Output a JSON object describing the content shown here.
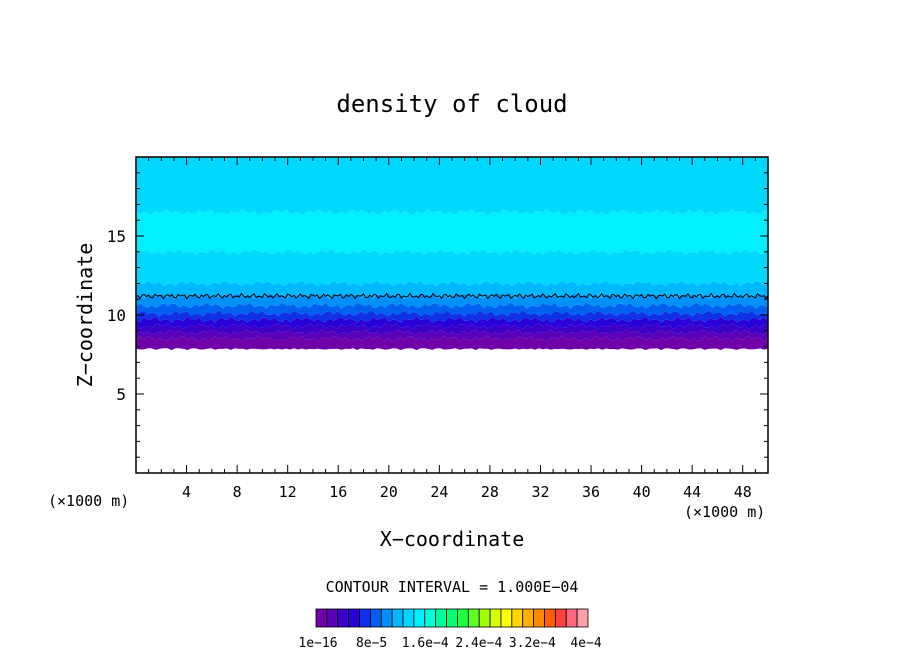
{
  "chart_data": {
    "type": "heatmap",
    "title": "density of cloud",
    "xlabel": "X−coordinate",
    "ylabel": "Z−coordinate",
    "x_unit": "(×1000 m)",
    "y_unit": "(×1000 m)",
    "xlim": [
      0,
      50
    ],
    "ylim": [
      0,
      20
    ],
    "x_ticks": [
      4,
      8,
      12,
      16,
      20,
      24,
      28,
      32,
      36,
      40,
      44,
      48
    ],
    "y_ticks": [
      5,
      10,
      15
    ],
    "grid": false,
    "contour_interval_text": "CONTOUR INTERVAL = 1.000E−04",
    "colorbar_labels": [
      "1e−16",
      "8e−5",
      "1.6e−4",
      "2.4e−4",
      "3.2e−4",
      "4e−4"
    ],
    "colorbar_colors": [
      "#7000a8",
      "#5a00b8",
      "#3c00c8",
      "#2800d8",
      "#1030e8",
      "#0060f0",
      "#0090f8",
      "#00b8ff",
      "#00d8ff",
      "#00f0ff",
      "#00ffd8",
      "#00ffa0",
      "#00ff70",
      "#20ff40",
      "#60ff20",
      "#a0ff00",
      "#d8ff00",
      "#ffff00",
      "#ffd800",
      "#ffb000",
      "#ff8800",
      "#ff6000",
      "#ff4040",
      "#ff6880",
      "#ffa0a8"
    ],
    "layers": [
      {
        "z_bottom": 7.9,
        "z_top": 8.5,
        "color": "#7000a8"
      },
      {
        "z_bottom": 8.5,
        "z_top": 8.9,
        "color": "#5a00b8"
      },
      {
        "z_bottom": 8.9,
        "z_top": 9.3,
        "color": "#3c00c8"
      },
      {
        "z_bottom": 9.3,
        "z_top": 9.7,
        "color": "#2800d8"
      },
      {
        "z_bottom": 9.7,
        "z_top": 10.1,
        "color": "#1030e8"
      },
      {
        "z_bottom": 10.1,
        "z_top": 10.6,
        "color": "#0060f0"
      },
      {
        "z_bottom": 10.6,
        "z_top": 11.2,
        "color": "#0090f8"
      },
      {
        "z_bottom": 11.2,
        "z_top": 12.0,
        "color": "#00b8ff"
      },
      {
        "z_bottom": 12.0,
        "z_top": 14.0,
        "color": "#00d8ff"
      },
      {
        "z_bottom": 14.0,
        "z_top": 16.5,
        "color": "#00f0ff"
      },
      {
        "z_bottom": 16.5,
        "z_top": 20.0,
        "color": "#00d8ff"
      }
    ],
    "contour_line_z": 11.2
  }
}
